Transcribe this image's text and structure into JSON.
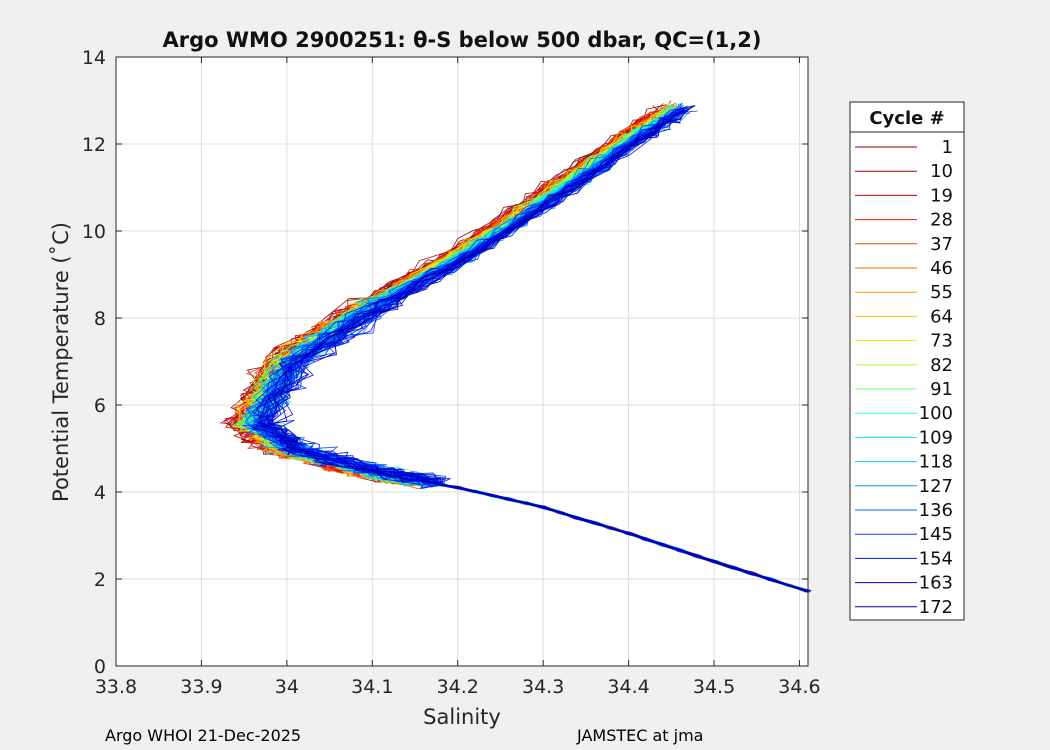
{
  "chart_data": {
    "type": "line",
    "title": "Argo WMO 2900251: θ-S below 500 dbar,  QC=(1,2)",
    "xlabel": "Salinity",
    "ylabel": "Potential Temperature (˚C)",
    "xlim": [
      33.8,
      34.61
    ],
    "ylim": [
      0,
      14
    ],
    "xticks": [
      33.8,
      33.9,
      34.0,
      34.1,
      34.2,
      34.3,
      34.4,
      34.5,
      34.6
    ],
    "xtick_labels": [
      "33.8",
      "33.9",
      "34",
      "34.1",
      "34.2",
      "34.3",
      "34.4",
      "34.5",
      "34.6"
    ],
    "yticks": [
      0,
      2,
      4,
      6,
      8,
      10,
      12,
      14
    ],
    "ytick_labels": [
      "0",
      "2",
      "4",
      "6",
      "8",
      "10",
      "12",
      "14"
    ],
    "grid": true,
    "legend": {
      "title": "Cycle #",
      "position": "right",
      "entries": [
        {
          "label": "1",
          "color": "#800000"
        },
        {
          "label": "10",
          "color": "#a20000"
        },
        {
          "label": "19",
          "color": "#c40000"
        },
        {
          "label": "28",
          "color": "#e61a00"
        },
        {
          "label": "37",
          "color": "#f53d00"
        },
        {
          "label": "46",
          "color": "#ff6a00"
        },
        {
          "label": "55",
          "color": "#ff9a00"
        },
        {
          "label": "64",
          "color": "#ffc800"
        },
        {
          "label": "73",
          "color": "#f0ef00"
        },
        {
          "label": "82",
          "color": "#b4ff2a"
        },
        {
          "label": "91",
          "color": "#6cff6c"
        },
        {
          "label": "100",
          "color": "#2affb0"
        },
        {
          "label": "109",
          "color": "#00f0e8"
        },
        {
          "label": "118",
          "color": "#00c8ff"
        },
        {
          "label": "127",
          "color": "#009aff"
        },
        {
          "label": "136",
          "color": "#006aff"
        },
        {
          "label": "145",
          "color": "#003cff"
        },
        {
          "label": "154",
          "color": "#0010f0"
        },
        {
          "label": "163",
          "color": "#0000c8"
        },
        {
          "label": "172",
          "color": "#00008f"
        }
      ]
    },
    "series_shape": {
      "description": "one theta-S profile per cycle, deep limb to shallow limb",
      "deep_limb": [
        [
          34.61,
          1.72
        ],
        [
          34.5,
          2.4
        ],
        [
          34.4,
          3.05
        ],
        [
          34.3,
          3.65
        ],
        [
          34.2,
          4.1
        ],
        [
          34.1,
          4.45
        ]
      ],
      "intermediate_minimum": [
        [
          34.0,
          5.0
        ],
        [
          33.96,
          5.6
        ]
      ],
      "shallow_limb": [
        [
          34.0,
          7.0
        ],
        [
          34.1,
          8.3
        ],
        [
          34.2,
          9.4
        ],
        [
          34.3,
          10.7
        ],
        [
          34.4,
          12.1
        ],
        [
          34.47,
          13.0
        ]
      ]
    }
  },
  "footer": {
    "left": "Argo WHOI 21-Dec-2025",
    "right": "JAMSTEC at jma"
  }
}
